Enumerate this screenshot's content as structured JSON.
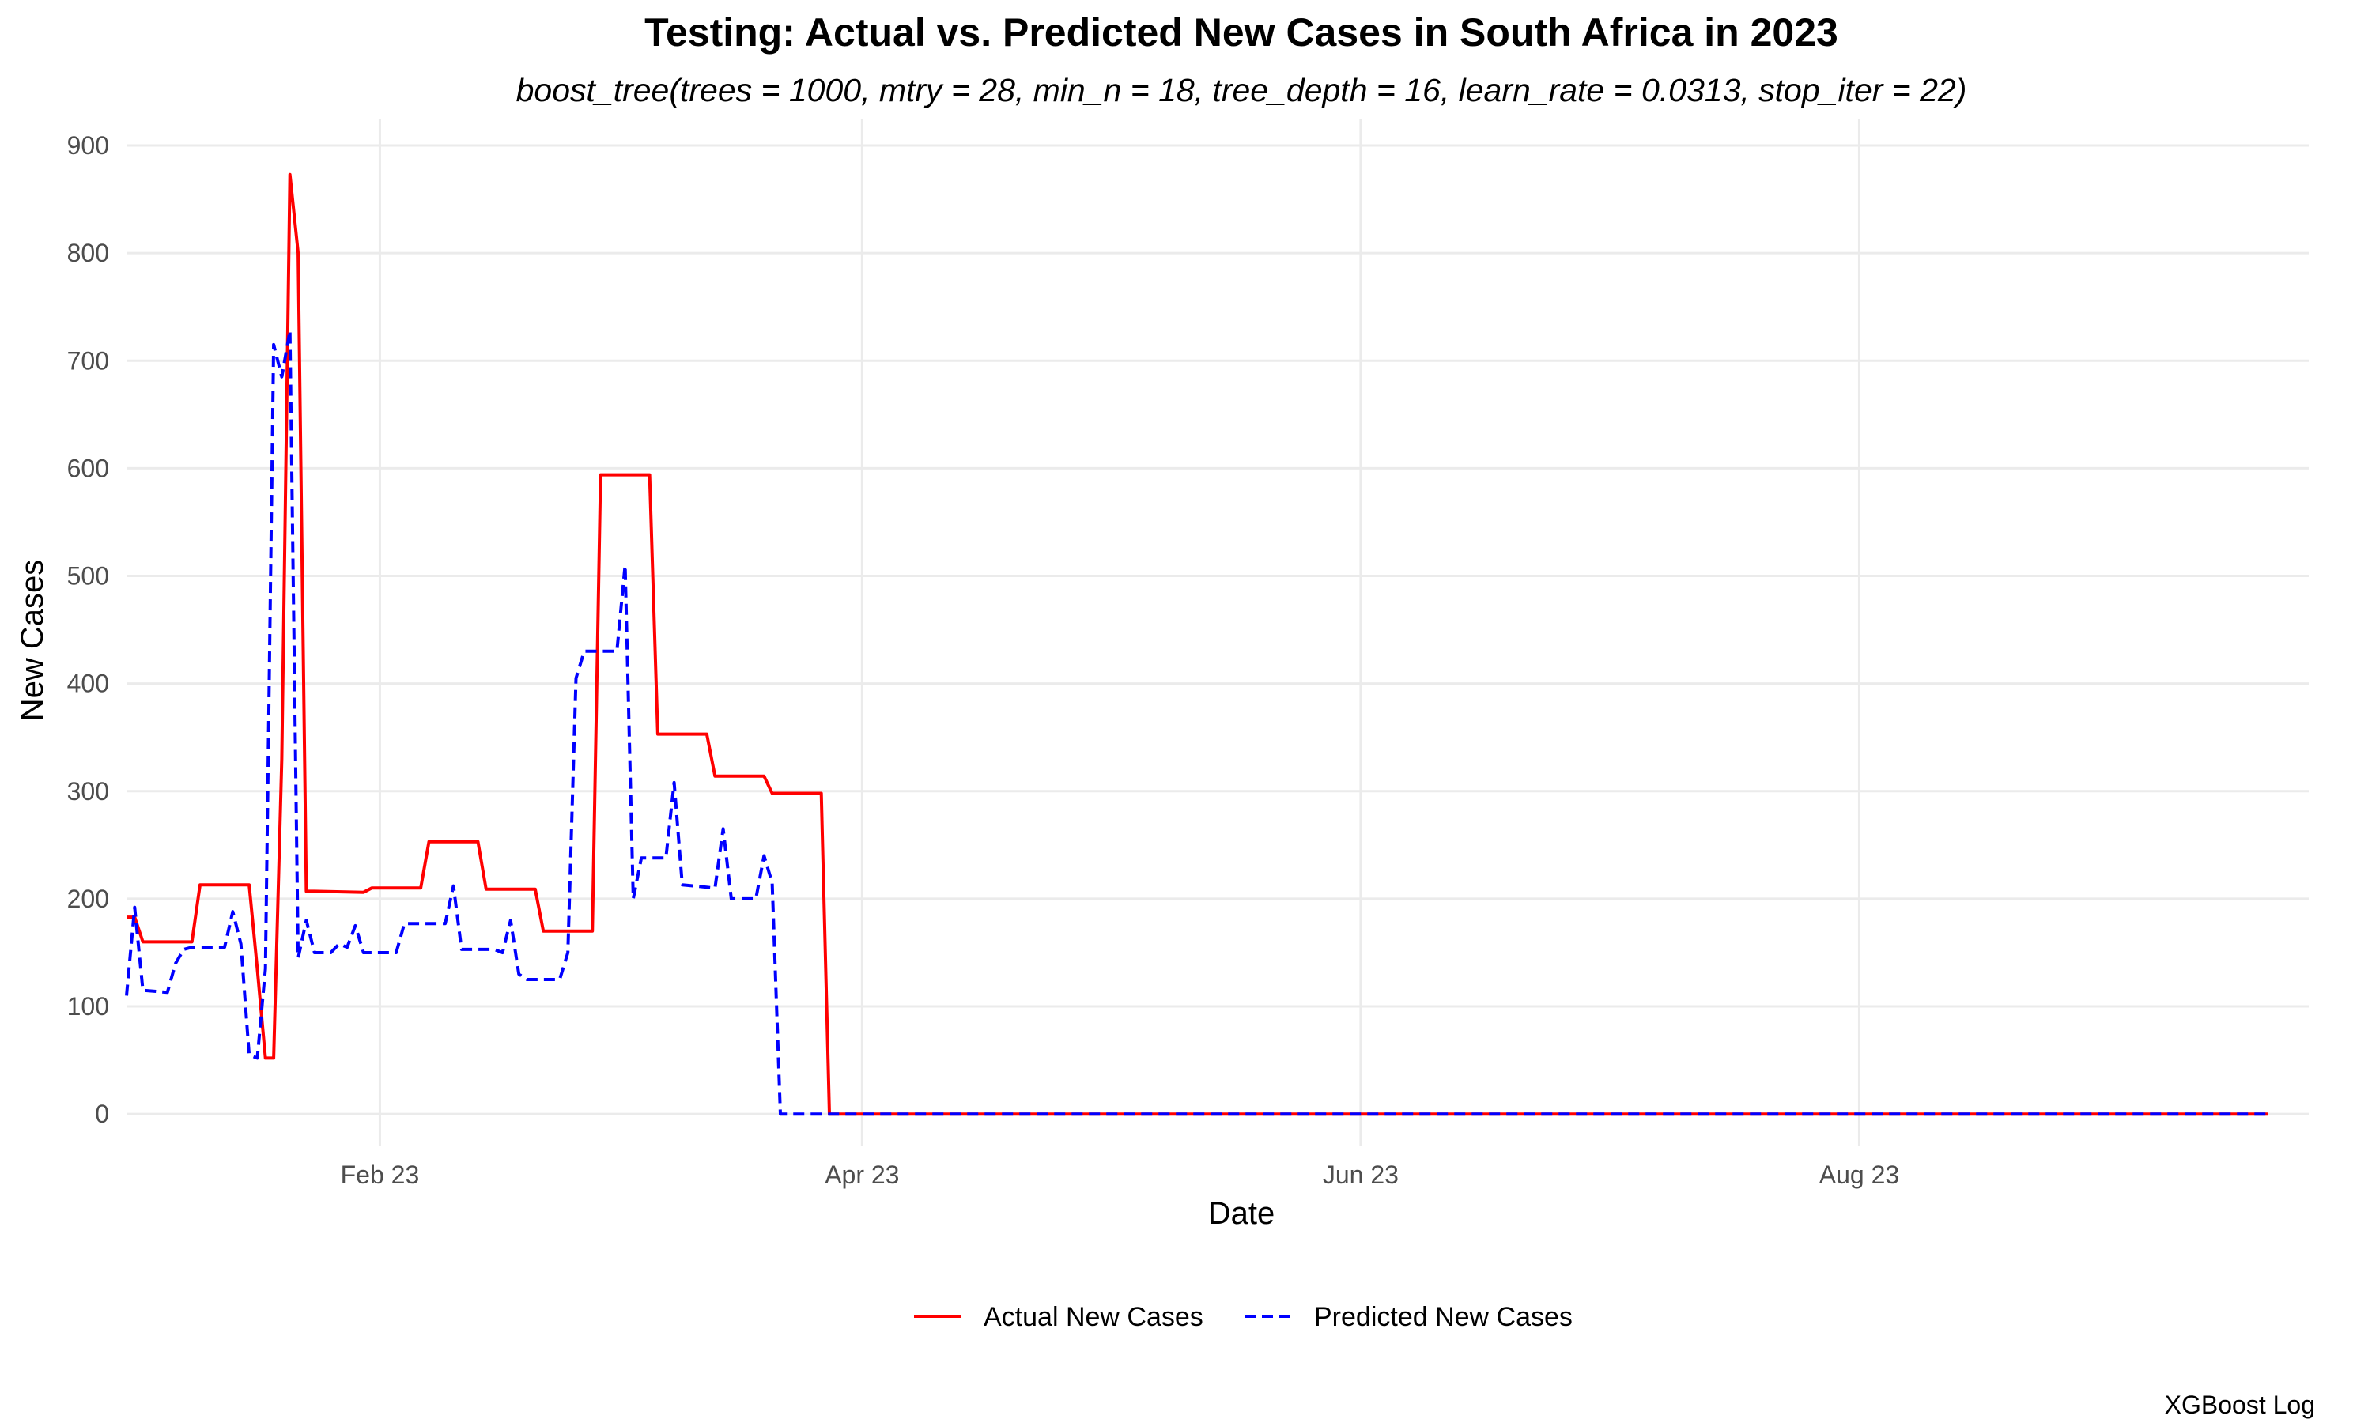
{
  "chart_data": {
    "type": "line",
    "title": "Testing: Actual vs. Predicted New Cases in South Africa in 2023",
    "subtitle": "boost_tree(trees = 1000, mtry = 28, min_n = 18, tree_depth = 16, learn_rate = 0.0313, stop_iter = 22)",
    "xlabel": "Date",
    "ylabel": "New Cases",
    "caption": "XGBoost Log",
    "x_type": "date",
    "xlim": [
      "2023-01-01",
      "2023-09-25"
    ],
    "ylim": [
      -30,
      925
    ],
    "x_ticks": [
      {
        "date": "2023-02-01",
        "label": "Feb 23"
      },
      {
        "date": "2023-04-01",
        "label": "Apr 23"
      },
      {
        "date": "2023-06-01",
        "label": "Jun 23"
      },
      {
        "date": "2023-08-01",
        "label": "Aug 23"
      }
    ],
    "y_ticks": [
      0,
      100,
      200,
      300,
      400,
      500,
      600,
      700,
      800,
      900
    ],
    "grid": true,
    "legend_position": "bottom",
    "series": [
      {
        "name": "Actual New Cases",
        "color": "#ff0000",
        "dash": "solid",
        "points": [
          [
            "2023-01-01",
            183
          ],
          [
            "2023-01-02",
            183
          ],
          [
            "2023-01-03",
            160
          ],
          [
            "2023-01-09",
            160
          ],
          [
            "2023-01-10",
            213
          ],
          [
            "2023-01-16",
            213
          ],
          [
            "2023-01-17",
            135
          ],
          [
            "2023-01-18",
            52
          ],
          [
            "2023-01-19",
            52
          ],
          [
            "2023-01-20",
            330
          ],
          [
            "2023-01-21",
            873
          ],
          [
            "2023-01-22",
            800
          ],
          [
            "2023-01-23",
            207
          ],
          [
            "2023-01-24",
            207
          ],
          [
            "2023-01-30",
            206
          ],
          [
            "2023-01-31",
            210
          ],
          [
            "2023-02-06",
            210
          ],
          [
            "2023-02-07",
            253
          ],
          [
            "2023-02-13",
            253
          ],
          [
            "2023-02-14",
            209
          ],
          [
            "2023-02-20",
            209
          ],
          [
            "2023-02-21",
            170
          ],
          [
            "2023-02-27",
            170
          ],
          [
            "2023-02-28",
            594
          ],
          [
            "2023-03-06",
            594
          ],
          [
            "2023-03-07",
            353
          ],
          [
            "2023-03-13",
            353
          ],
          [
            "2023-03-14",
            314
          ],
          [
            "2023-03-20",
            314
          ],
          [
            "2023-03-21",
            298
          ],
          [
            "2023-03-27",
            298
          ],
          [
            "2023-03-28",
            0
          ],
          [
            "2023-09-20",
            0
          ]
        ]
      },
      {
        "name": "Predicted New Cases",
        "color": "#0000ff",
        "dash": "dashed",
        "points": [
          [
            "2023-01-01",
            110
          ],
          [
            "2023-01-02",
            192
          ],
          [
            "2023-01-03",
            115
          ],
          [
            "2023-01-06",
            113
          ],
          [
            "2023-01-07",
            140
          ],
          [
            "2023-01-08",
            153
          ],
          [
            "2023-01-09",
            155
          ],
          [
            "2023-01-13",
            155
          ],
          [
            "2023-01-14",
            188
          ],
          [
            "2023-01-15",
            158
          ],
          [
            "2023-01-16",
            55
          ],
          [
            "2023-01-17",
            52
          ],
          [
            "2023-01-18",
            135
          ],
          [
            "2023-01-19",
            715
          ],
          [
            "2023-01-20",
            685
          ],
          [
            "2023-01-21",
            728
          ],
          [
            "2023-01-22",
            145
          ],
          [
            "2023-01-23",
            180
          ],
          [
            "2023-01-24",
            150
          ],
          [
            "2023-01-26",
            150
          ],
          [
            "2023-01-27",
            158
          ],
          [
            "2023-01-28",
            155
          ],
          [
            "2023-01-29",
            175
          ],
          [
            "2023-01-30",
            150
          ],
          [
            "2023-02-03",
            150
          ],
          [
            "2023-02-04",
            177
          ],
          [
            "2023-02-09",
            177
          ],
          [
            "2023-02-10",
            212
          ],
          [
            "2023-02-11",
            153
          ],
          [
            "2023-02-15",
            153
          ],
          [
            "2023-02-16",
            150
          ],
          [
            "2023-02-17",
            180
          ],
          [
            "2023-02-18",
            130
          ],
          [
            "2023-02-19",
            125
          ],
          [
            "2023-02-23",
            125
          ],
          [
            "2023-02-24",
            150
          ],
          [
            "2023-02-25",
            405
          ],
          [
            "2023-02-26",
            430
          ],
          [
            "2023-03-02",
            430
          ],
          [
            "2023-03-03",
            510
          ],
          [
            "2023-03-04",
            200
          ],
          [
            "2023-03-05",
            238
          ],
          [
            "2023-03-08",
            238
          ],
          [
            "2023-03-09",
            308
          ],
          [
            "2023-03-10",
            213
          ],
          [
            "2023-03-14",
            210
          ],
          [
            "2023-03-15",
            265
          ],
          [
            "2023-03-16",
            200
          ],
          [
            "2023-03-19",
            200
          ],
          [
            "2023-03-20",
            240
          ],
          [
            "2023-03-21",
            215
          ],
          [
            "2023-03-22",
            0
          ],
          [
            "2023-09-20",
            0
          ]
        ]
      }
    ]
  }
}
